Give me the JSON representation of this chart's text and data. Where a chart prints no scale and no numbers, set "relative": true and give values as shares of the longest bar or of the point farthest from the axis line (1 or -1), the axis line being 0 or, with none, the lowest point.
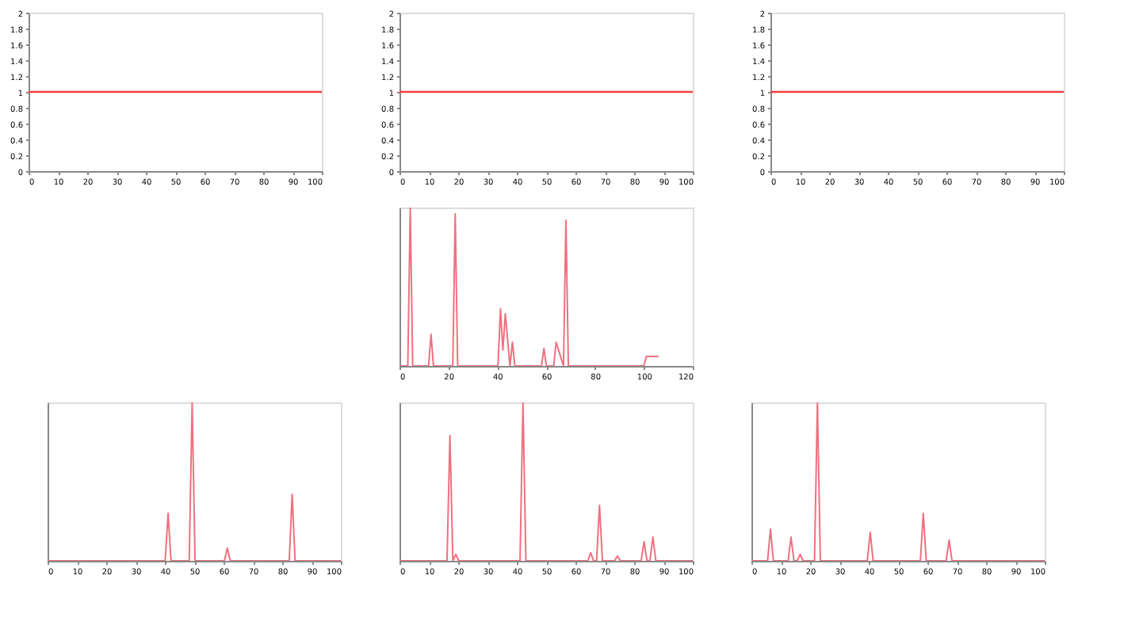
{
  "chart_data": [
    {
      "type": "line",
      "x": [
        0,
        100
      ],
      "series": [
        {
          "color": "#ee4040",
          "values": [
            1,
            1
          ]
        }
      ],
      "xlim": [
        0,
        100
      ],
      "xticks": [
        0,
        10,
        20,
        30,
        40,
        50,
        60,
        70,
        80,
        90,
        100
      ],
      "ylim": [
        0,
        2
      ],
      "yticks": [
        0,
        0.2,
        0.4,
        0.6,
        0.8,
        1,
        1.2,
        1.4,
        1.6,
        1.8,
        2
      ]
    },
    {
      "type": "line",
      "x": [
        0,
        100
      ],
      "series": [
        {
          "color": "#ee4040",
          "values": [
            1,
            1
          ]
        }
      ],
      "xlim": [
        0,
        100
      ],
      "xticks": [
        0,
        10,
        20,
        30,
        40,
        50,
        60,
        70,
        80,
        90,
        100
      ],
      "ylim": [
        0,
        2
      ],
      "yticks": [
        0,
        0.2,
        0.4,
        0.6,
        0.8,
        1,
        1.2,
        1.4,
        1.6,
        1.8,
        2
      ]
    },
    {
      "type": "line",
      "x": [
        0,
        100
      ],
      "series": [
        {
          "color": "#ee4040",
          "values": [
            1,
            1
          ]
        }
      ],
      "xlim": [
        0,
        100
      ],
      "xticks": [
        0,
        10,
        20,
        30,
        40,
        50,
        60,
        70,
        80,
        90,
        100
      ],
      "ylim": [
        0,
        2
      ],
      "yticks": [
        0,
        0.2,
        0.4,
        0.6,
        0.8,
        1,
        1.2,
        1.4,
        1.6,
        1.8,
        2
      ]
    },
    {
      "type": "line",
      "relative": true,
      "x": [
        0,
        3.4,
        4.4,
        5.4,
        11.9,
        12.9,
        13.9,
        21.8,
        22.8,
        23.8,
        40.3,
        41.3,
        42.3,
        43.3,
        45.2,
        46.2,
        47.2,
        58.1,
        59.1,
        60.1,
        63.1,
        64.1,
        67.1,
        68.1,
        69.1,
        100,
        101,
        106
      ],
      "series": [
        {
          "color": "#f07080",
          "values": [
            0,
            0,
            1,
            0,
            0,
            0.2,
            0,
            0,
            0.96,
            0,
            0,
            0.36,
            0.1,
            0.33,
            0,
            0.15,
            0,
            0,
            0.11,
            0,
            0,
            0.15,
            0,
            0.92,
            0,
            0,
            0.06,
            0.06
          ]
        }
      ],
      "xlim": [
        0,
        120
      ],
      "xticks": [
        0,
        20,
        40,
        60,
        80,
        100,
        120
      ]
    },
    {
      "type": "line",
      "relative": true,
      "x": [
        0,
        40.1,
        41.1,
        42.1,
        48.3,
        49.3,
        50.3,
        60.3,
        61.3,
        62.3,
        82.4,
        83.4,
        84.4,
        100
      ],
      "series": [
        {
          "color": "#f07080",
          "values": [
            0,
            0,
            0.3,
            0,
            0,
            1,
            0,
            0,
            0.08,
            0,
            0,
            0.42,
            0,
            0
          ]
        }
      ],
      "xlim": [
        0,
        100
      ],
      "xticks": [
        0,
        10,
        20,
        30,
        40,
        50,
        60,
        70,
        80,
        90,
        100
      ]
    },
    {
      "type": "line",
      "relative": true,
      "x": [
        0,
        16.2,
        17.2,
        18.2,
        19.2,
        20.2,
        41.1,
        42.1,
        43.1,
        64.2,
        65.2,
        66.2,
        67.2,
        68.2,
        69.2,
        73.3,
        74.3,
        75.3,
        82.4,
        83.4,
        84.4,
        85.4,
        86.4,
        87.4,
        100
      ],
      "series": [
        {
          "color": "#f07080",
          "values": [
            0,
            0,
            0.79,
            0,
            0.04,
            0,
            0,
            1,
            0,
            0,
            0.05,
            0,
            0,
            0.35,
            0,
            0,
            0.03,
            0,
            0,
            0.12,
            0,
            0,
            0.15,
            0,
            0
          ]
        }
      ],
      "xlim": [
        0,
        100
      ],
      "xticks": [
        0,
        10,
        20,
        30,
        40,
        50,
        60,
        70,
        80,
        90,
        100
      ]
    },
    {
      "type": "line",
      "relative": true,
      "x": [
        0,
        5.5,
        6.5,
        7.5,
        12.5,
        13.5,
        14.5,
        15.6,
        16.6,
        17.6,
        21.5,
        22.5,
        23.5,
        39.5,
        40.5,
        41.5,
        57.6,
        58.6,
        59.6,
        66.4,
        67.4,
        68.4,
        100
      ],
      "series": [
        {
          "color": "#f07080",
          "values": [
            0,
            0,
            0.2,
            0,
            0,
            0.15,
            0,
            0,
            0.04,
            0,
            0,
            1,
            0,
            0,
            0.18,
            0,
            0,
            0.3,
            0,
            0,
            0.13,
            0,
            0
          ]
        }
      ],
      "xlim": [
        0,
        100
      ],
      "xticks": [
        0,
        10,
        20,
        30,
        40,
        50,
        60,
        70,
        80,
        90,
        100
      ]
    }
  ]
}
